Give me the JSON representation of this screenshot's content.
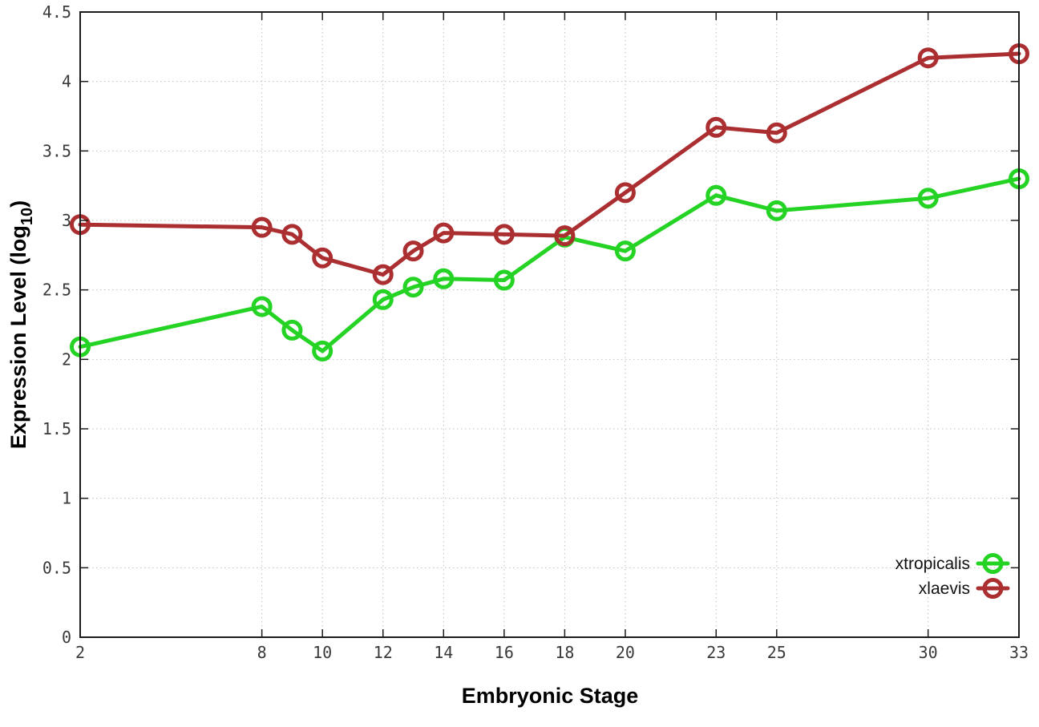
{
  "figure": {
    "background": "#ffffff",
    "frame_color": "#1c1c1c",
    "grid_color": "#bfbfbf",
    "tick_label_color": "#3a3a3a"
  },
  "chart_data": {
    "type": "line",
    "title": "",
    "xlabel": "Embryonic Stage",
    "ylabel": "Expression Level (log10)",
    "ylabel_parts": {
      "prefix": "Expression Level (log",
      "sub": "10",
      "suffix": ")"
    },
    "x": [
      2,
      8,
      9,
      10,
      12,
      13,
      14,
      16,
      18,
      20,
      23,
      25,
      30,
      33
    ],
    "series": [
      {
        "name": "xtropicalis",
        "color": "#24d324",
        "values": [
          2.09,
          2.38,
          2.21,
          2.06,
          2.43,
          2.52,
          2.58,
          2.57,
          2.88,
          2.78,
          3.18,
          3.07,
          3.16,
          3.3
        ]
      },
      {
        "name": "xlaevis",
        "color": "#ab2f31",
        "values": [
          2.97,
          2.95,
          2.9,
          2.73,
          2.61,
          2.78,
          2.91,
          2.9,
          2.89,
          3.2,
          3.67,
          3.63,
          4.17,
          4.2
        ]
      }
    ],
    "xticks": [
      2,
      8,
      10,
      12,
      14,
      16,
      18,
      20,
      23,
      25,
      30,
      33
    ],
    "yticks": [
      0,
      0.5,
      1,
      1.5,
      2,
      2.5,
      3,
      3.5,
      4,
      4.5
    ],
    "xlim": [
      2,
      33
    ],
    "ylim": [
      0,
      4.5
    ],
    "grid": true,
    "grid_style": "dotted",
    "legend_position": "bottom-right",
    "marker": "open-circle"
  }
}
